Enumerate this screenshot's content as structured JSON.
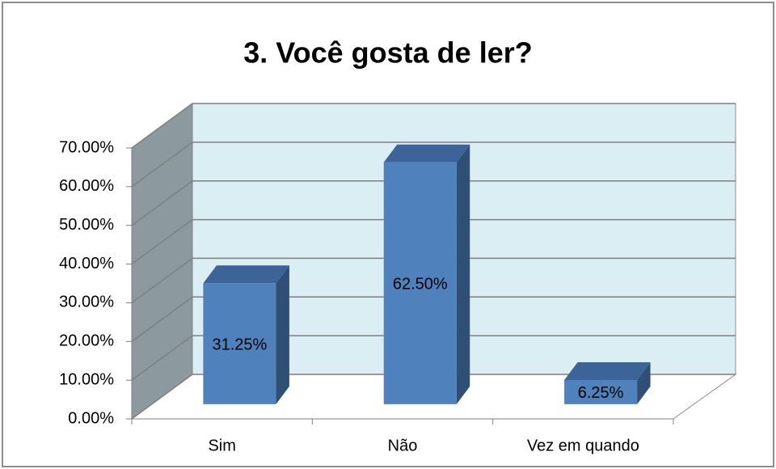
{
  "chart_data": {
    "type": "bar3d",
    "title": "3. Você gosta de ler?",
    "categories": [
      "Sim",
      "Não",
      "Vez em quando"
    ],
    "values": [
      31.25,
      62.5,
      6.25
    ],
    "value_labels": [
      "31.25%",
      "62.50%",
      "6.25%"
    ],
    "color": "#4f81bd",
    "ylim": [
      0,
      70
    ],
    "yticks": [
      {
        "value": 0,
        "label": "0.00%"
      },
      {
        "value": 10,
        "label": "10.00%"
      },
      {
        "value": 20,
        "label": "20.00%"
      },
      {
        "value": 30,
        "label": "30.00%"
      },
      {
        "value": 40,
        "label": "40.00%"
      },
      {
        "value": 50,
        "label": "50.00%"
      },
      {
        "value": 60,
        "label": "60.00%"
      },
      {
        "value": 70,
        "label": "70.00%"
      }
    ],
    "grid": true
  }
}
